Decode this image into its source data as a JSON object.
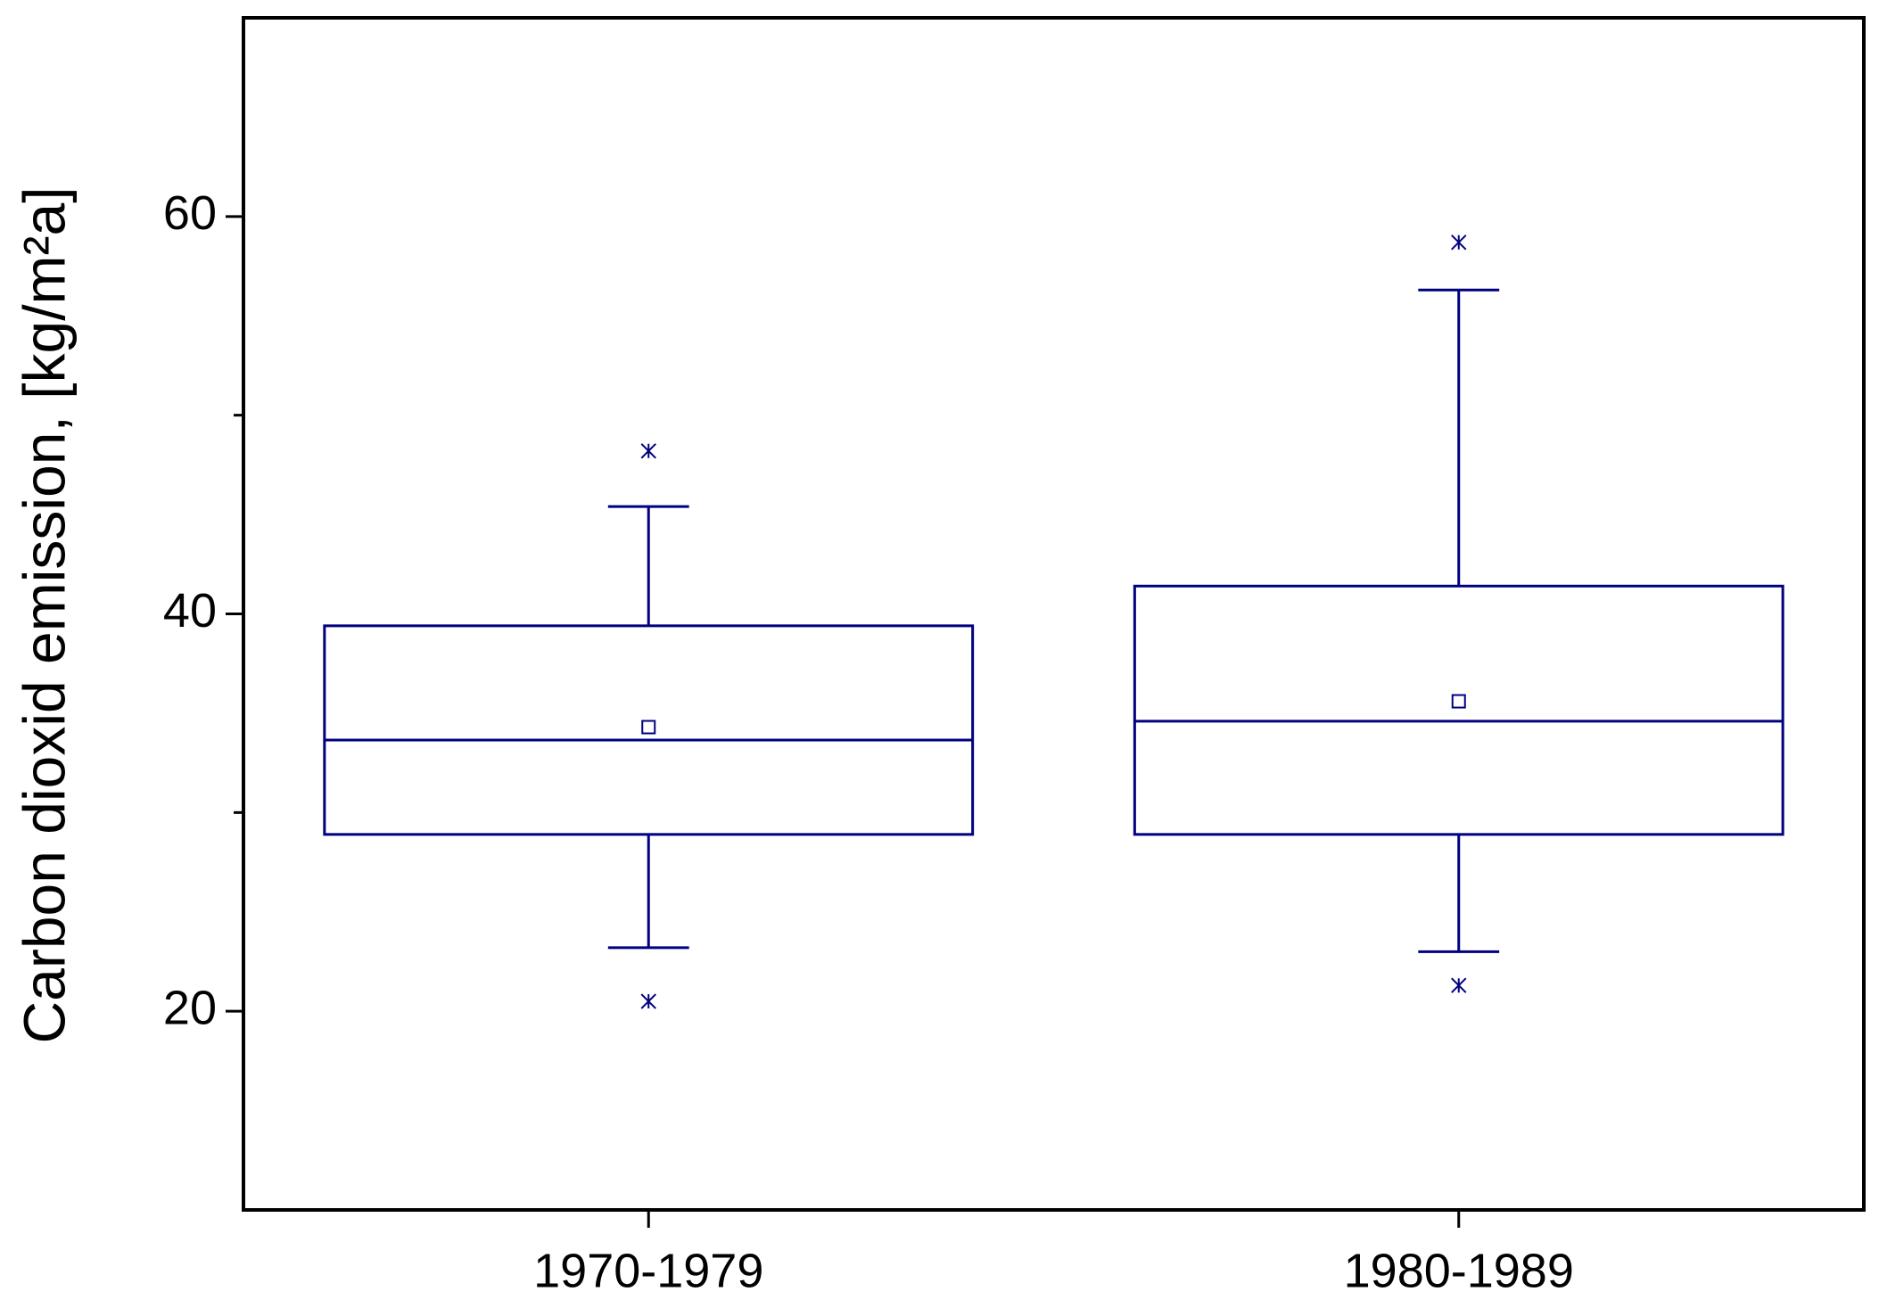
{
  "chart_data": {
    "type": "box",
    "y_label": "Carbon dioxid emission, [kg/m²a]",
    "categories": [
      "1970-1979",
      "1980-1989"
    ],
    "color": "#000080",
    "boxes": [
      {
        "whisker_low": 23.2,
        "q1": 28.9,
        "median": 33.65,
        "q3": 39.4,
        "whisker_high": 45.4,
        "mean": 34.3,
        "outliers": [
          48.2,
          20.5
        ]
      },
      {
        "whisker_low": 23.0,
        "q1": 28.9,
        "median": 34.6,
        "q3": 41.4,
        "whisker_high": 56.3,
        "mean": 35.6,
        "outliers": [
          58.7,
          21.3
        ]
      }
    ],
    "ylim": [
      10,
      70
    ],
    "yticks": [
      20,
      40,
      60
    ],
    "yminorticks": [
      30,
      50
    ]
  }
}
